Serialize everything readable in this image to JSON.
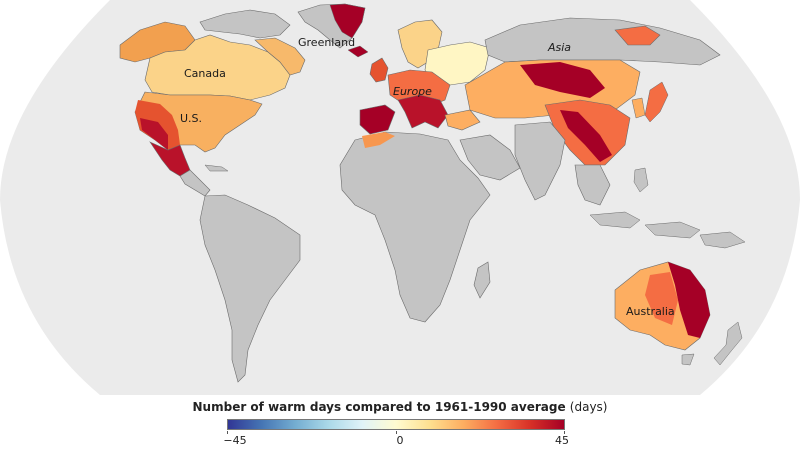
{
  "map": {
    "projection": "Robinson-style world map",
    "labels": {
      "greenland": "Greenland",
      "canada": "Canada",
      "us": "U.S.",
      "europe": "Europe",
      "asia": "Asia",
      "australia": "Australia"
    },
    "colors": {
      "ocean": "#ebebeb",
      "no_data_land": "#c4c4c4",
      "border": "#6b6b6b"
    }
  },
  "legend": {
    "title": "Number of warm days compared to 1961-1990 average",
    "unit": "(days)",
    "min_label": "−45",
    "mid_label": "0",
    "max_label": "45",
    "min": -45,
    "max": 45,
    "color_stops": [
      "#313695",
      "#4575b4",
      "#74add1",
      "#abd9e9",
      "#e0f3f8",
      "#fffbd0",
      "#fee090",
      "#fdae61",
      "#f46d43",
      "#d73027",
      "#a50026"
    ]
  }
}
